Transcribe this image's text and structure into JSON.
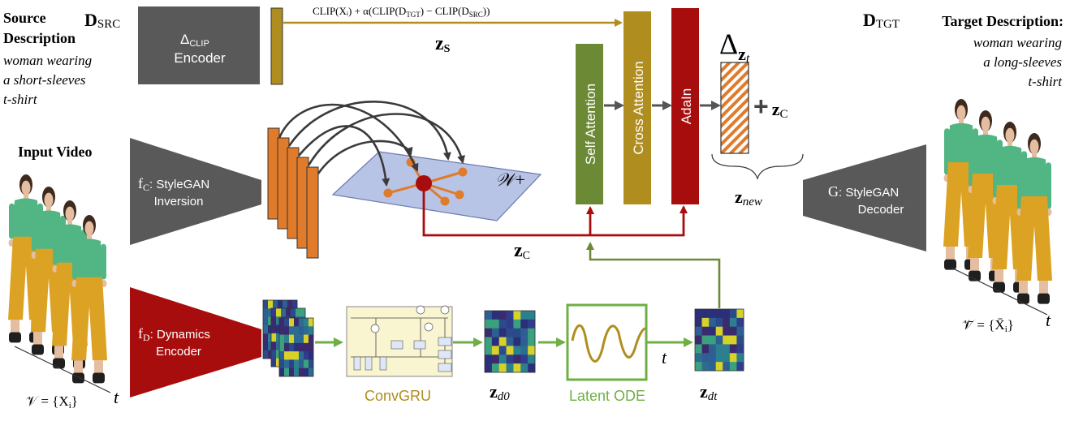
{
  "source": {
    "d_label": "D",
    "d_sub": "SRC",
    "title_line1": "Source",
    "title_line2": "Description",
    "text_line1": "woman wearing",
    "text_line2": "a short-sleeves",
    "text_line3": "t-shirt"
  },
  "target": {
    "d_label": "D",
    "d_sub": "TGT",
    "title": "Target Description:",
    "text_line1": "woman wearing",
    "text_line2": "a long-sleeves",
    "text_line3": "t-shirt"
  },
  "clip_encoder": {
    "delta": "Δ",
    "sub": "CLIP",
    "label": "Encoder"
  },
  "clip_formula": "CLIP(Xᵢ) + α(CLIP(D",
  "clip_formula_sub1": "TGT",
  "clip_formula_mid": ") − CLIP(D",
  "clip_formula_sub2": "SRC",
  "clip_formula_end": "))",
  "zs": {
    "z": "z",
    "sub": "S"
  },
  "input_video_label": "Input Video",
  "fc_encoder": {
    "f": "f",
    "sub": "C",
    "line1": ": StyleGAN",
    "line2": "Inversion"
  },
  "fd_encoder": {
    "f": "f",
    "sub": "D",
    "line1": ": Dynamics",
    "line2": "Encoder"
  },
  "g_decoder": {
    "g": "G",
    "line1": ": StyleGAN",
    "line2": "Decoder"
  },
  "w_plus": "𝒲+",
  "zc": {
    "z": "z",
    "sub": "C"
  },
  "blocks": {
    "self_attention": "Self Attention",
    "cross_attention": "Cross Attention",
    "adain": "AdaIn"
  },
  "delta_zt": {
    "delta": "Δ",
    "z": "z",
    "sub": "t"
  },
  "plus_zc": {
    "plus": "+",
    "z": "z",
    "sub": "C"
  },
  "znew": {
    "z": "z",
    "sub": "new"
  },
  "convgru_label": "ConvGRU",
  "latent_ode_label": "Latent ODE",
  "zd0": {
    "z": "z",
    "sub": "d0"
  },
  "zdt": {
    "z": "z",
    "sub": "dt"
  },
  "t_arrow_label": "t",
  "input_set": {
    "lhs": "𝒱 = {X",
    "sub": "i",
    "rhs": "}"
  },
  "input_t": "t",
  "output_set": {
    "lhs": "𝒱̄ = {X̄",
    "sub": "i",
    "rhs": "}"
  },
  "output_t": "t",
  "colors": {
    "gray_block": "#595959",
    "olive": "#b08d1f",
    "dark_red": "#a80d0d",
    "green": "#6c8a35",
    "light_green": "#6faf45",
    "orange": "#e07b2c",
    "plane": "#b8c4e6"
  },
  "icons": {
    "video_frames": "woman-figure-icon",
    "gru_cell": "convgru-cell-icon",
    "ode_curve": "sine-wave-icon"
  }
}
